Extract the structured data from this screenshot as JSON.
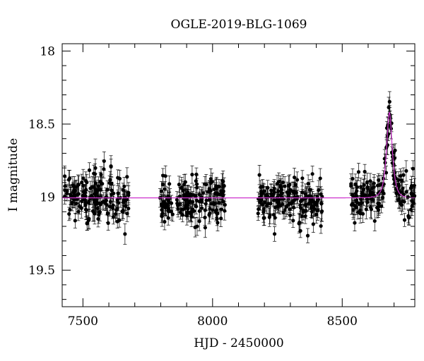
{
  "chart_data": {
    "type": "scatter",
    "title": "OGLE-2019-BLG-1069",
    "xlabel": "HJD - 2450000",
    "ylabel": "I magnitude",
    "xlim": [
      7420,
      8780
    ],
    "ylim": [
      19.75,
      17.95
    ],
    "y_inverted": true,
    "grid": false,
    "x_ticks": [
      7500,
      8000,
      8500
    ],
    "x_tick_labels": [
      "7500",
      "8000",
      "8500"
    ],
    "y_ticks": [
      18,
      18.5,
      19,
      19.5
    ],
    "y_tick_labels": [
      "18",
      "18.5",
      "19",
      "19.5"
    ],
    "colors": {
      "points": "#000000",
      "model": "#cc33cc",
      "axes": "#000000"
    },
    "model": {
      "name": "",
      "baseline": 19.005,
      "peak_time": 8682,
      "peak_mag": 18.42,
      "timescale_days": 16
    },
    "observing_seasons": [
      {
        "start": 7428,
        "end": 7678,
        "mean": 19.0,
        "scatter": 0.09
      },
      {
        "start": 7795,
        "end": 8048,
        "mean": 19.02,
        "scatter": 0.08
      },
      {
        "start": 8175,
        "end": 8425,
        "mean": 19.02,
        "scatter": 0.07
      },
      {
        "start": 8532,
        "end": 8790,
        "mean": 19.0,
        "scatter": 0.08
      }
    ],
    "points_per_season": 160,
    "error_bar_mag": 0.055
  }
}
